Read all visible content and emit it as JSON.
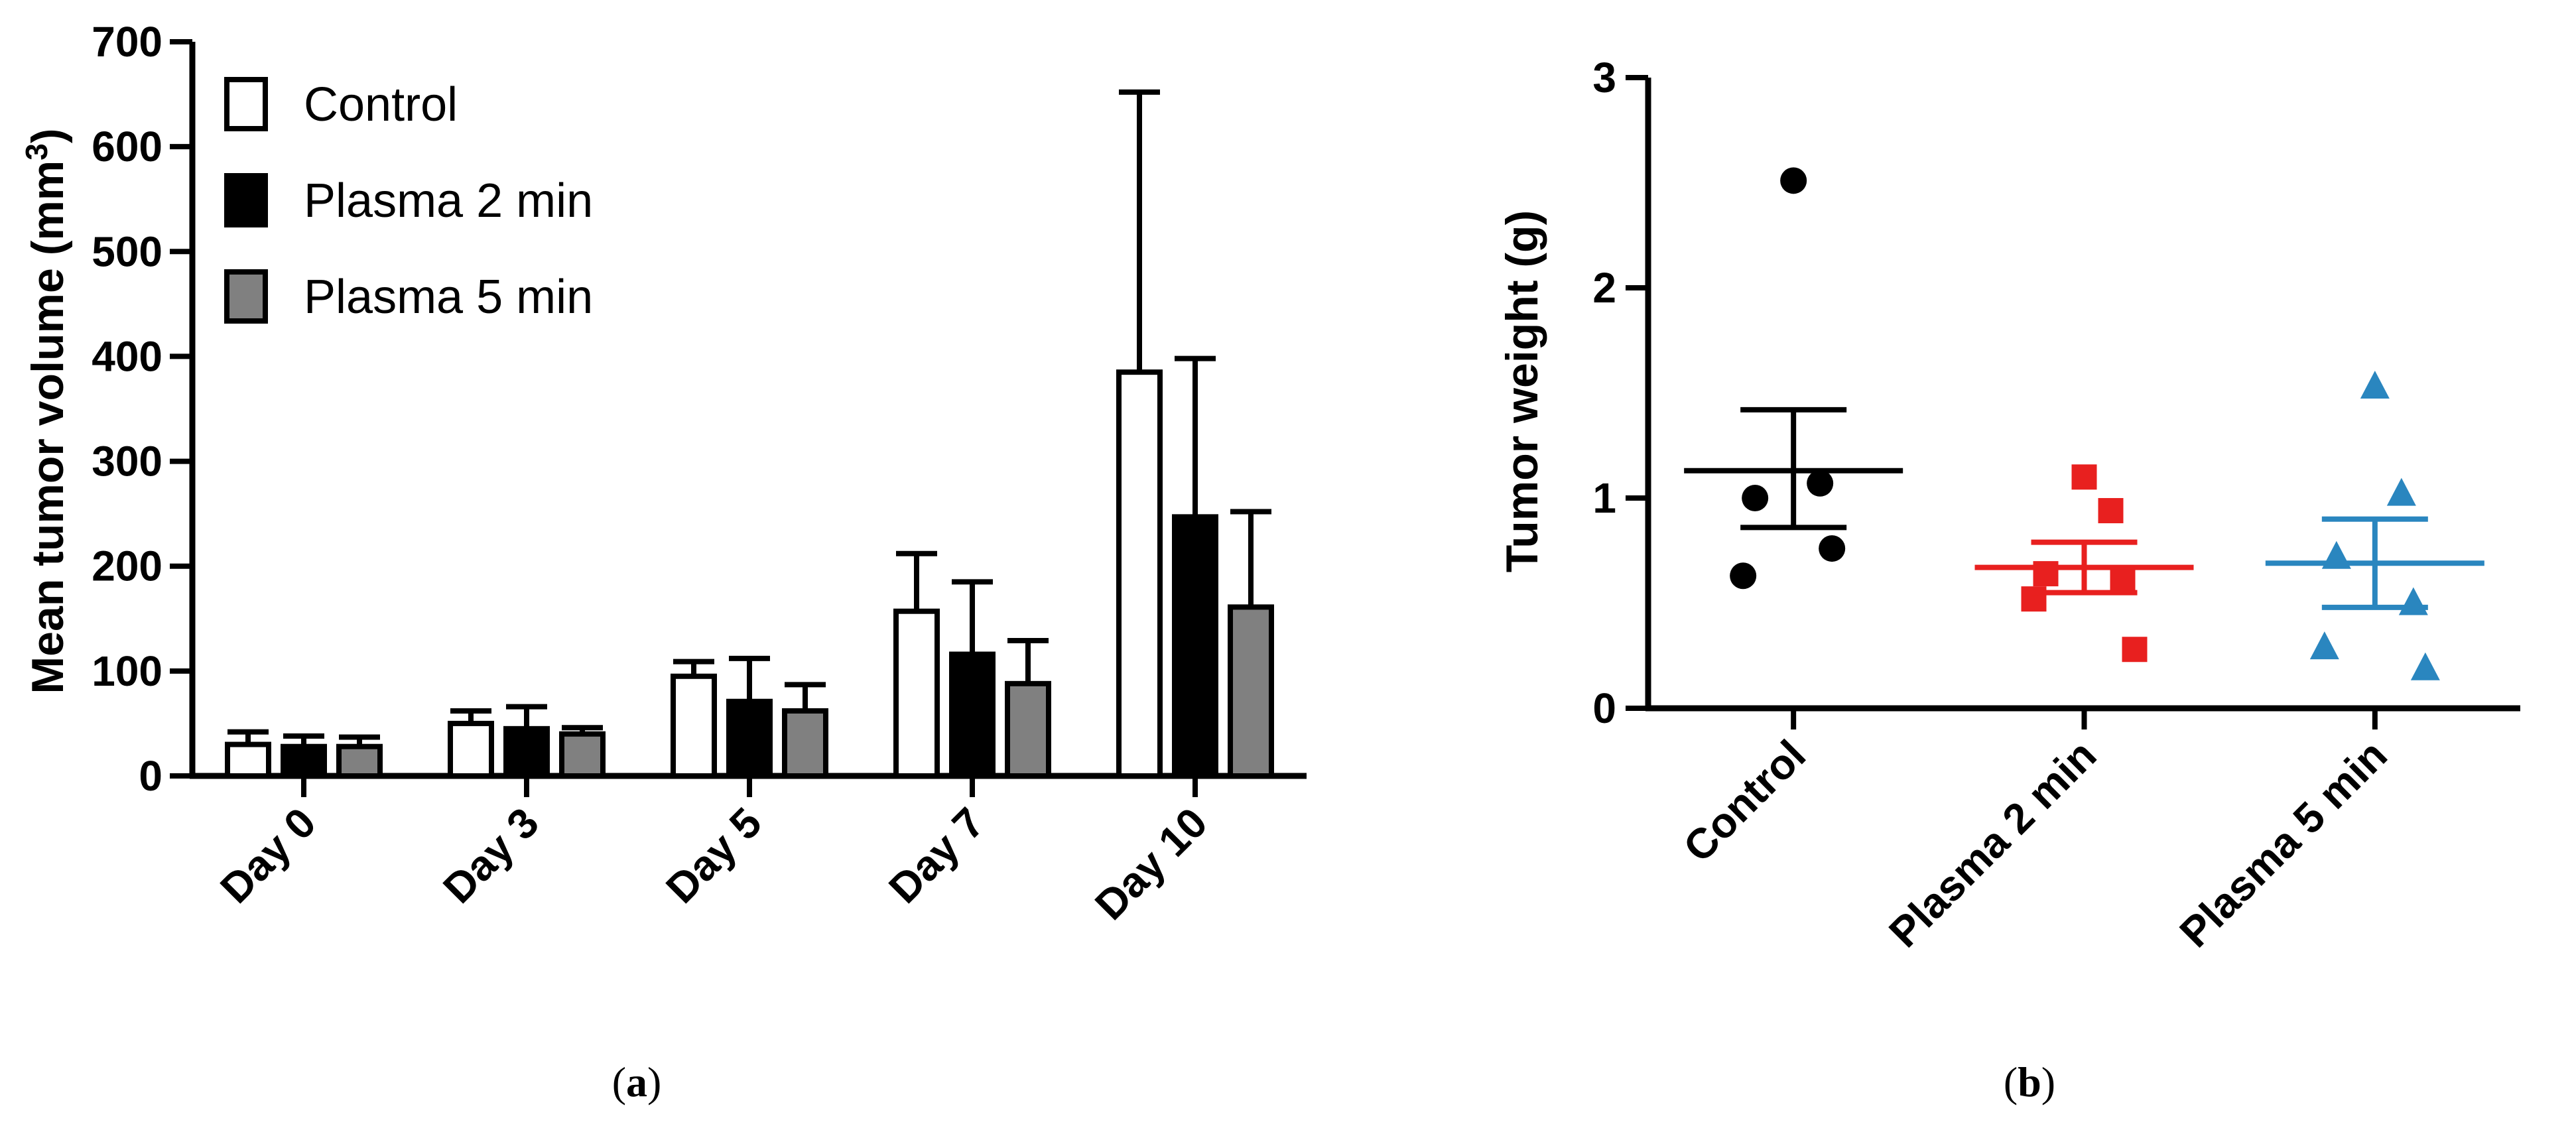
{
  "chart_data": [
    {
      "type": "bar",
      "panel_label": {
        "open": "(",
        "letter": "a",
        "close": ")"
      },
      "ylabel": {
        "main": "Mean tumor volume (mm",
        "sup": "3",
        "end": ")"
      },
      "ylim": [
        0,
        700
      ],
      "yticks": [
        0,
        100,
        200,
        300,
        400,
        500,
        600,
        700
      ],
      "categories": [
        "Day 0",
        "Day 3",
        "Day 5",
        "Day 7",
        "Day 10"
      ],
      "legend": {
        "position": "top-left"
      },
      "series": [
        {
          "name": "Control",
          "fill": "#ffffff",
          "values": [
            30,
            50,
            95,
            157,
            385
          ],
          "errors": [
            12,
            12,
            14,
            55,
            267
          ]
        },
        {
          "name": "Plasma 2 min",
          "fill": "#000000",
          "values": [
            28,
            45,
            71,
            116,
            247
          ],
          "errors": [
            10,
            21,
            41,
            69,
            151
          ]
        },
        {
          "name": "Plasma 5 min",
          "fill": "#808080",
          "values": [
            28,
            40,
            62,
            88,
            161
          ],
          "errors": [
            9,
            6,
            25,
            41,
            91
          ]
        }
      ]
    },
    {
      "type": "scatter",
      "panel_label": {
        "open": "(",
        "letter": "b",
        "close": ")"
      },
      "ylabel": "Tumor weight (g)",
      "ylim": [
        0,
        3
      ],
      "yticks": [
        0,
        1,
        2,
        3
      ],
      "categories": [
        "Control",
        "Plasma 2 min",
        "Plasma 5 min"
      ],
      "groups": [
        {
          "name": "Control",
          "color": "#000000",
          "marker": "circle",
          "points": [
            2.51,
            1.07,
            1.0,
            0.76,
            0.63
          ],
          "mean": 1.13,
          "sem_upper": 1.42,
          "sem_lower": 0.86
        },
        {
          "name": "Plasma 2 min",
          "color": "#e8201f",
          "marker": "square",
          "points": [
            1.1,
            0.94,
            0.64,
            0.62,
            0.52,
            0.28
          ],
          "mean": 0.67,
          "sem_upper": 0.79,
          "sem_lower": 0.55
        },
        {
          "name": "Plasma 5 min",
          "color": "#2a86bf",
          "marker": "triangle",
          "points": [
            1.53,
            1.02,
            0.72,
            0.5,
            0.29,
            0.19
          ],
          "mean": 0.69,
          "sem_upper": 0.9,
          "sem_lower": 0.48
        }
      ]
    }
  ]
}
